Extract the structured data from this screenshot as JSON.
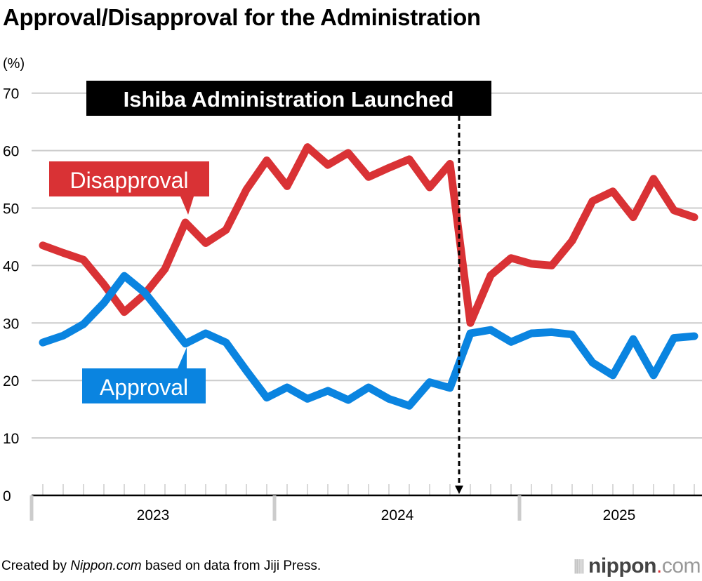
{
  "title": "Approval/Disapproval for the Administration",
  "footer": {
    "prefix": "Created by ",
    "site": "Nippon.com",
    "suffix": " based on data from Jiji Press."
  },
  "logo": {
    "name": "nippon",
    "dot": ".",
    "tld": "com"
  },
  "colors": {
    "approval": "#0a84e0",
    "disapproval": "#d93235",
    "annotation_bg": "#000000",
    "grid": "#cccccc"
  },
  "chart_data": {
    "type": "line",
    "ylabel": "(%)",
    "ylim": [
      0,
      70
    ],
    "yticks": [
      0,
      10,
      20,
      30,
      40,
      50,
      60,
      70
    ],
    "grid": true,
    "year_labels": [
      "2023",
      "2024",
      "2025"
    ],
    "x": [
      "2023-01",
      "2023-02",
      "2023-03",
      "2023-04",
      "2023-05",
      "2023-06",
      "2023-07",
      "2023-08",
      "2023-09",
      "2023-10",
      "2023-11",
      "2023-12",
      "2024-01",
      "2024-02",
      "2024-03",
      "2024-04",
      "2024-05",
      "2024-06",
      "2024-07",
      "2024-08",
      "2024-09",
      "2024-10",
      "2024-11",
      "2024-12",
      "2025-01",
      "2025-02",
      "2025-03",
      "2025-04",
      "2025-05",
      "2025-06",
      "2025-07",
      "2025-08",
      "2025-09"
    ],
    "series": [
      {
        "name": "Disapproval",
        "color": "#d93235",
        "values": [
          43.5,
          42.2,
          41.0,
          36.7,
          31.9,
          35.0,
          39.4,
          47.5,
          43.9,
          46.2,
          53.2,
          58.3,
          53.8,
          60.6,
          57.5,
          59.6,
          55.4,
          57.0,
          58.5,
          53.6,
          57.7,
          30.0,
          38.3,
          41.3,
          40.3,
          40.0,
          44.3,
          51.2,
          52.9,
          48.4,
          55.1,
          49.6,
          48.4
        ]
      },
      {
        "name": "Approval",
        "color": "#0a84e0",
        "values": [
          26.6,
          27.8,
          29.8,
          33.5,
          38.2,
          35.3,
          30.9,
          26.4,
          28.2,
          26.6,
          21.7,
          17.0,
          18.8,
          16.8,
          18.2,
          16.6,
          18.8,
          16.8,
          15.6,
          19.7,
          18.7,
          28.2,
          28.8,
          26.7,
          28.2,
          28.4,
          28.0,
          23.1,
          20.9,
          27.2,
          20.9,
          27.4,
          27.7
        ]
      }
    ],
    "annotations": [
      {
        "text": "Ishiba Administration Launched",
        "at": "2024-09/2024-10"
      }
    ]
  }
}
